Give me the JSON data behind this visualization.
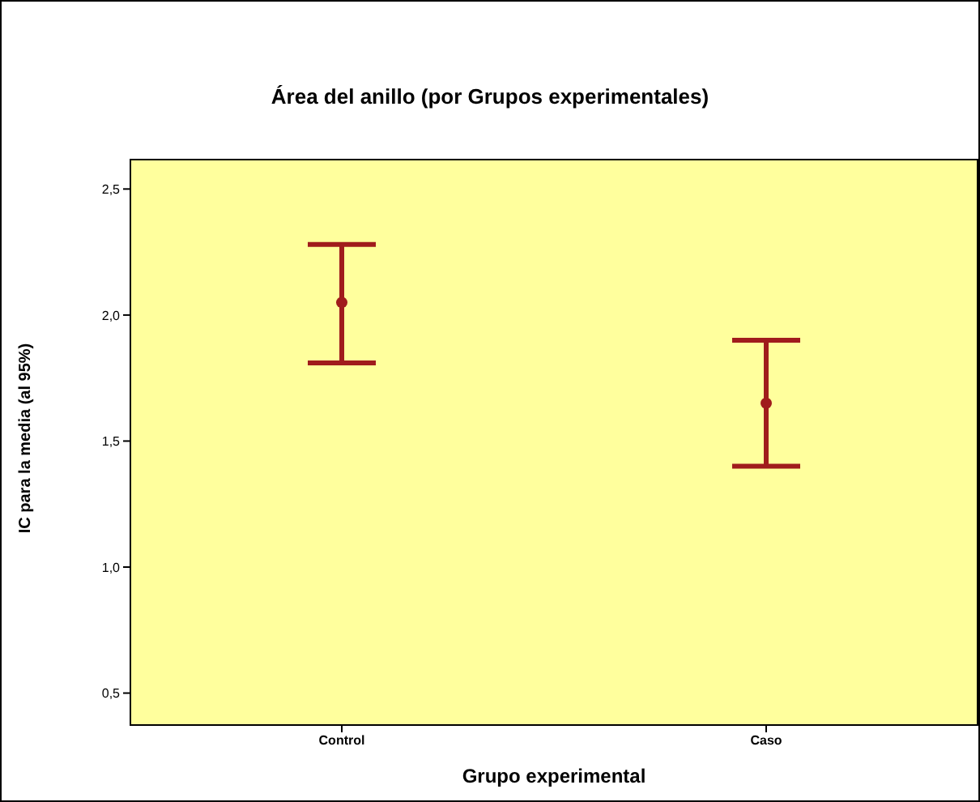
{
  "chart_data": {
    "type": "scatter",
    "title": "Área del anillo (por Grupos experimentales)",
    "xlabel": "Grupo experimental",
    "ylabel": "IC para la media (al 95%)",
    "categories": [
      "Control",
      "Caso"
    ],
    "color": "#a01c1c",
    "values": [
      2.05,
      1.65
    ],
    "errors": [
      [
        1.81,
        2.28
      ],
      [
        1.4,
        1.9
      ]
    ],
    "ylim": [
      0.37,
      2.62
    ],
    "yticks": [
      {
        "value": 0.5,
        "label": "0,5"
      },
      {
        "value": 1.0,
        "label": "1,0"
      },
      {
        "value": 1.5,
        "label": "1,5"
      },
      {
        "value": 2.0,
        "label": "2,0"
      },
      {
        "value": 2.5,
        "label": "2,5"
      }
    ],
    "marker": "circle",
    "grid": false,
    "legend": false
  }
}
